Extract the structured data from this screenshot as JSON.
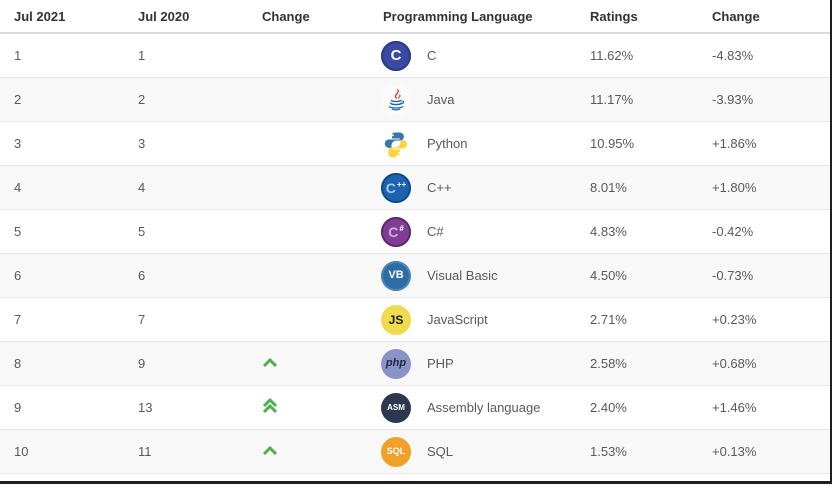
{
  "table": {
    "headers": [
      "Jul 2021",
      "Jul 2020",
      "Change",
      "Programming Language",
      "Ratings",
      "Change"
    ],
    "rows": [
      {
        "rank_2021": "1",
        "rank_2020": "1",
        "rank_change": "none",
        "language": "C",
        "ratings": "11.62%",
        "ratings_change": "-4.83%",
        "icon": {
          "name": "c-language-icon",
          "kind": "badge",
          "bg": "#3a4aa3",
          "ring": "#2e3b85",
          "label": "C",
          "label_color": "#ffffff",
          "label_size": 15
        }
      },
      {
        "rank_2021": "2",
        "rank_2020": "2",
        "rank_change": "none",
        "language": "Java",
        "ratings": "11.17%",
        "ratings_change": "-3.93%",
        "icon": {
          "name": "java-icon",
          "kind": "java",
          "bg": "#fbfbfb",
          "cup_color": "#1565c0",
          "flame_color": "#e53935"
        }
      },
      {
        "rank_2021": "3",
        "rank_2020": "3",
        "rank_change": "none",
        "language": "Python",
        "ratings": "10.95%",
        "ratings_change": "+1.86%",
        "icon": {
          "name": "python-icon",
          "kind": "python",
          "blue": "#3776ab",
          "yellow": "#ffd43b"
        }
      },
      {
        "rank_2021": "4",
        "rank_2020": "4",
        "rank_change": "none",
        "language": "C++",
        "ratings": "8.01%",
        "ratings_change": "+1.80%",
        "icon": {
          "name": "cpp-icon",
          "kind": "badge",
          "bg": "#1b63b0",
          "ring": "#124a88",
          "label": "C",
          "suffix": "++",
          "label_color": "#a6cdf0",
          "suffix_color": "#ffffff",
          "label_size": 14,
          "suffix_size": 8
        }
      },
      {
        "rank_2021": "5",
        "rank_2020": "5",
        "rank_change": "none",
        "language": "C#",
        "ratings": "4.83%",
        "ratings_change": "-0.42%",
        "icon": {
          "name": "csharp-icon",
          "kind": "badge",
          "bg": "#813d94",
          "ring": "#5c2a6e",
          "label": "C",
          "suffix": "#",
          "label_color": "#cbaede",
          "suffix_color": "#ffffff",
          "label_size": 14,
          "suffix_size": 8
        }
      },
      {
        "rank_2021": "6",
        "rank_2020": "6",
        "rank_change": "none",
        "language": "Visual Basic",
        "ratings": "4.50%",
        "ratings_change": "-0.73%",
        "icon": {
          "name": "visual-basic-icon",
          "kind": "badge",
          "bg": "#2e6da4",
          "ring": "#4c87b9",
          "label": "VB",
          "label_color": "#ffffff",
          "label_size": 11
        }
      },
      {
        "rank_2021": "7",
        "rank_2020": "7",
        "rank_change": "none",
        "language": "JavaScript",
        "ratings": "2.71%",
        "ratings_change": "+0.23%",
        "icon": {
          "name": "javascript-icon",
          "kind": "badge",
          "bg": "#f0db4f",
          "label": "JS",
          "label_color": "#1d1d1d",
          "label_size": 12
        }
      },
      {
        "rank_2021": "8",
        "rank_2020": "9",
        "rank_change": "up",
        "language": "PHP",
        "ratings": "2.58%",
        "ratings_change": "+0.68%",
        "icon": {
          "name": "php-icon",
          "kind": "badge",
          "bg": "#8a93c6",
          "label": "php",
          "label_color": "#232642",
          "label_size": 11,
          "italic": true
        }
      },
      {
        "rank_2021": "9",
        "rank_2020": "13",
        "rank_change": "up2",
        "language": "Assembly language",
        "ratings": "2.40%",
        "ratings_change": "+1.46%",
        "icon": {
          "name": "assembly-icon",
          "kind": "badge",
          "bg": "#2c3850",
          "label": "ASM",
          "label_color": "#ffffff",
          "label_size": 8
        }
      },
      {
        "rank_2021": "10",
        "rank_2020": "11",
        "rank_change": "up",
        "language": "SQL",
        "ratings": "1.53%",
        "ratings_change": "+0.13%",
        "icon": {
          "name": "sql-icon",
          "kind": "badge",
          "bg": "#f1a02a",
          "label": "SQL",
          "label_color": "#ffffff",
          "label_size": 9
        }
      }
    ]
  },
  "colors": {
    "up_arrow_green": "#4caf50",
    "header_text": "#333333",
    "cell_text": "#595959",
    "row_alt_bg": "#f8f8f8",
    "frame_border": "#1f1f1f"
  }
}
